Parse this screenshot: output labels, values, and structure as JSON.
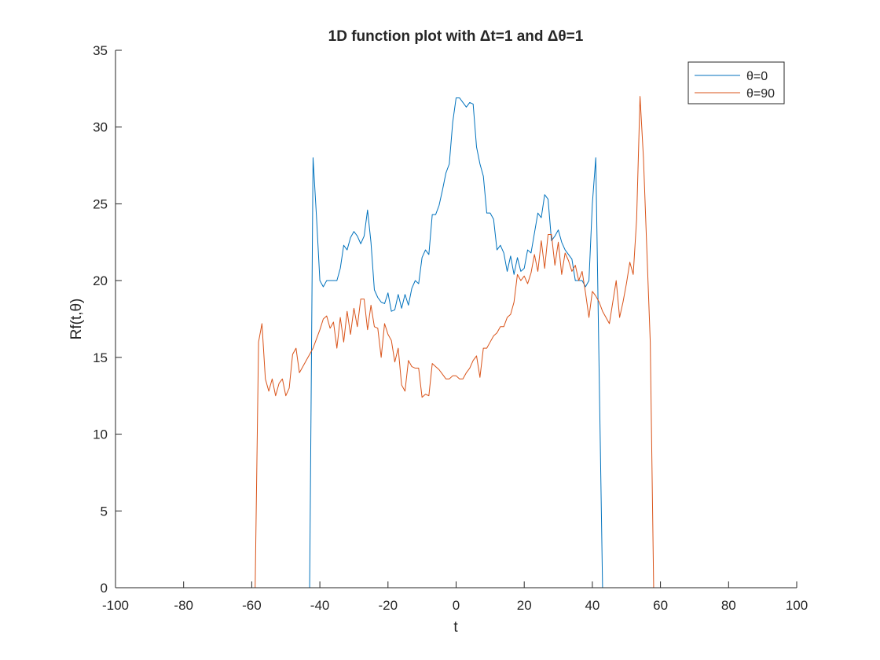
{
  "chart_data": {
    "type": "line",
    "title": "1D function plot with Δt=1 and Δθ=1",
    "xlabel": "t",
    "ylabel": "Rf(t,θ)",
    "xlim": [
      -100,
      100
    ],
    "ylim": [
      0,
      35
    ],
    "xticks": [
      -100,
      -80,
      -60,
      -40,
      -20,
      0,
      20,
      40,
      60,
      80,
      100
    ],
    "yticks": [
      0,
      5,
      10,
      15,
      20,
      25,
      30,
      35
    ],
    "grid": false,
    "legend_position": "top-right",
    "series": [
      {
        "name": "θ=0",
        "color": "#0072BD",
        "points": [
          [
            -90,
            0
          ],
          [
            -44,
            0
          ],
          [
            -43,
            0
          ],
          [
            -42,
            28.0
          ],
          [
            -41,
            24.2
          ],
          [
            -40,
            20.0
          ],
          [
            -39,
            19.6
          ],
          [
            -38,
            20.0
          ],
          [
            -37,
            20.0
          ],
          [
            -36,
            20.0
          ],
          [
            -35,
            20.0
          ],
          [
            -34,
            20.8
          ],
          [
            -33,
            22.3
          ],
          [
            -32,
            22.0
          ],
          [
            -31,
            22.8
          ],
          [
            -30,
            23.2
          ],
          [
            -29,
            22.9
          ],
          [
            -28,
            22.4
          ],
          [
            -27,
            22.9
          ],
          [
            -26,
            24.6
          ],
          [
            -25,
            22.5
          ],
          [
            -24,
            19.4
          ],
          [
            -23,
            18.9
          ],
          [
            -22,
            18.6
          ],
          [
            -21,
            18.5
          ],
          [
            -20,
            19.2
          ],
          [
            -19,
            18.0
          ],
          [
            -18,
            18.1
          ],
          [
            -17,
            19.1
          ],
          [
            -16,
            18.2
          ],
          [
            -15,
            19.1
          ],
          [
            -14,
            18.4
          ],
          [
            -13,
            19.5
          ],
          [
            -12,
            20.0
          ],
          [
            -11,
            19.8
          ],
          [
            -10,
            21.5
          ],
          [
            -9,
            22.0
          ],
          [
            -8,
            21.7
          ],
          [
            -7,
            24.3
          ],
          [
            -6,
            24.3
          ],
          [
            -5,
            24.9
          ],
          [
            -4,
            25.9
          ],
          [
            -3,
            27.0
          ],
          [
            -2,
            27.6
          ],
          [
            -1,
            30.3
          ],
          [
            0,
            31.9
          ],
          [
            1,
            31.9
          ],
          [
            2,
            31.6
          ],
          [
            3,
            31.3
          ],
          [
            4,
            31.6
          ],
          [
            5,
            31.5
          ],
          [
            6,
            28.7
          ],
          [
            7,
            27.6
          ],
          [
            8,
            26.8
          ],
          [
            9,
            24.4
          ],
          [
            10,
            24.4
          ],
          [
            11,
            24.0
          ],
          [
            12,
            22.0
          ],
          [
            13,
            22.3
          ],
          [
            14,
            21.8
          ],
          [
            15,
            20.6
          ],
          [
            16,
            21.6
          ],
          [
            17,
            20.4
          ],
          [
            18,
            21.5
          ],
          [
            19,
            20.6
          ],
          [
            20,
            20.8
          ],
          [
            21,
            22.0
          ],
          [
            22,
            21.8
          ],
          [
            23,
            23.1
          ],
          [
            24,
            24.4
          ],
          [
            25,
            24.1
          ],
          [
            26,
            25.6
          ],
          [
            27,
            25.3
          ],
          [
            28,
            22.6
          ],
          [
            29,
            22.9
          ],
          [
            30,
            23.3
          ],
          [
            31,
            22.5
          ],
          [
            32,
            22.0
          ],
          [
            33,
            21.7
          ],
          [
            34,
            21.4
          ],
          [
            35,
            20.0
          ],
          [
            36,
            20.0
          ],
          [
            37,
            20.0
          ],
          [
            38,
            19.6
          ],
          [
            39,
            20.0
          ],
          [
            40,
            25.0
          ],
          [
            41,
            28.0
          ],
          [
            42,
            14.0
          ],
          [
            43,
            0
          ],
          [
            44,
            0
          ],
          [
            90,
            0
          ]
        ]
      },
      {
        "name": "θ=90",
        "color": "#D95319",
        "points": [
          [
            -90,
            0
          ],
          [
            -59,
            0
          ],
          [
            -58,
            16.0
          ],
          [
            -57,
            17.2
          ],
          [
            -56,
            13.6
          ],
          [
            -55,
            12.8
          ],
          [
            -54,
            13.6
          ],
          [
            -53,
            12.5
          ],
          [
            -52,
            13.3
          ],
          [
            -51,
            13.6
          ],
          [
            -50,
            12.5
          ],
          [
            -49,
            13.0
          ],
          [
            -48,
            15.2
          ],
          [
            -47,
            15.6
          ],
          [
            -46,
            14.0
          ],
          [
            -45,
            14.4
          ],
          [
            -44,
            14.8
          ],
          [
            -43,
            15.2
          ],
          [
            -42,
            15.6
          ],
          [
            -41,
            16.2
          ],
          [
            -40,
            16.8
          ],
          [
            -39,
            17.5
          ],
          [
            -38,
            17.7
          ],
          [
            -37,
            16.9
          ],
          [
            -36,
            17.3
          ],
          [
            -35,
            15.6
          ],
          [
            -34,
            17.6
          ],
          [
            -33,
            16.0
          ],
          [
            -32,
            18.0
          ],
          [
            -31,
            16.5
          ],
          [
            -30,
            18.2
          ],
          [
            -29,
            17.0
          ],
          [
            -28,
            18.8
          ],
          [
            -27,
            18.8
          ],
          [
            -26,
            16.8
          ],
          [
            -25,
            18.4
          ],
          [
            -24,
            17.0
          ],
          [
            -23,
            16.9
          ],
          [
            -22,
            15.0
          ],
          [
            -21,
            17.2
          ],
          [
            -20,
            16.5
          ],
          [
            -19,
            16.1
          ],
          [
            -18,
            14.7
          ],
          [
            -17,
            15.6
          ],
          [
            -16,
            13.2
          ],
          [
            -15,
            12.8
          ],
          [
            -14,
            14.8
          ],
          [
            -13,
            14.4
          ],
          [
            -12,
            14.3
          ],
          [
            -11,
            14.3
          ],
          [
            -10,
            12.4
          ],
          [
            -9,
            12.6
          ],
          [
            -8,
            12.5
          ],
          [
            -7,
            14.6
          ],
          [
            -6,
            14.4
          ],
          [
            -5,
            14.2
          ],
          [
            -4,
            13.9
          ],
          [
            -3,
            13.6
          ],
          [
            -2,
            13.6
          ],
          [
            -1,
            13.8
          ],
          [
            0,
            13.8
          ],
          [
            1,
            13.6
          ],
          [
            2,
            13.6
          ],
          [
            3,
            14.0
          ],
          [
            4,
            14.3
          ],
          [
            5,
            14.8
          ],
          [
            6,
            15.1
          ],
          [
            7,
            13.7
          ],
          [
            8,
            15.6
          ],
          [
            9,
            15.6
          ],
          [
            10,
            16.0
          ],
          [
            11,
            16.4
          ],
          [
            12,
            16.6
          ],
          [
            13,
            17.0
          ],
          [
            14,
            17.0
          ],
          [
            15,
            17.6
          ],
          [
            16,
            17.8
          ],
          [
            17,
            18.6
          ],
          [
            18,
            20.4
          ],
          [
            19,
            20.0
          ],
          [
            20,
            20.3
          ],
          [
            21,
            19.8
          ],
          [
            22,
            20.5
          ],
          [
            23,
            21.7
          ],
          [
            24,
            20.6
          ],
          [
            25,
            22.6
          ],
          [
            26,
            20.8
          ],
          [
            27,
            23.0
          ],
          [
            28,
            23.0
          ],
          [
            29,
            21.0
          ],
          [
            30,
            22.5
          ],
          [
            31,
            20.4
          ],
          [
            32,
            21.8
          ],
          [
            33,
            21.3
          ],
          [
            34,
            20.6
          ],
          [
            35,
            21.0
          ],
          [
            36,
            20.0
          ],
          [
            37,
            20.6
          ],
          [
            38,
            19.2
          ],
          [
            39,
            17.6
          ],
          [
            40,
            19.3
          ],
          [
            41,
            19.0
          ],
          [
            42,
            18.6
          ],
          [
            43,
            18.0
          ],
          [
            44,
            17.6
          ],
          [
            45,
            17.2
          ],
          [
            46,
            18.6
          ],
          [
            47,
            20.0
          ],
          [
            48,
            17.6
          ],
          [
            49,
            18.6
          ],
          [
            50,
            19.8
          ],
          [
            51,
            21.2
          ],
          [
            52,
            20.4
          ],
          [
            53,
            24.0
          ],
          [
            54,
            32.0
          ],
          [
            55,
            28.0
          ],
          [
            56,
            22.0
          ],
          [
            57,
            16.0
          ],
          [
            58,
            0
          ],
          [
            59,
            0
          ],
          [
            90,
            0
          ]
        ]
      }
    ]
  }
}
